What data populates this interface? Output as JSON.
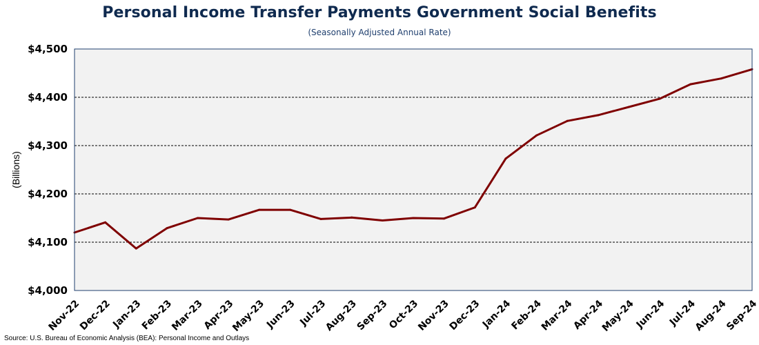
{
  "chart_data": {
    "type": "line",
    "title": "Personal Income Transfer Payments Government Social Benefits",
    "subtitle": "(Seasonally Adjusted Annual Rate)",
    "ylabel": "(Billions)",
    "xlabel": "",
    "source": "Source: U.S. Bureau of Economic Analysis (BEA): Personal Income and Outlays",
    "ylim": [
      4000,
      4500
    ],
    "yticks": [
      4000,
      4100,
      4200,
      4300,
      4400,
      4500
    ],
    "ytick_labels": [
      "$4,000",
      "$4,100",
      "$4,200",
      "$4,300",
      "$4,400",
      "$4,500"
    ],
    "grid": "horizontal dashed",
    "line_color": "#7f0000",
    "plot_background": "#f2f2f2",
    "categories": [
      "Nov-22",
      "Dec-22",
      "Jan-23",
      "Feb-23",
      "Mar-23",
      "Apr-23",
      "May-23",
      "Jun-23",
      "Jul-23",
      "Aug-23",
      "Sep-23",
      "Oct-23",
      "Nov-23",
      "Dec-23",
      "Jan-24",
      "Feb-24",
      "Mar-24",
      "Apr-24",
      "May-24",
      "Jun-24",
      "Jul-24",
      "Aug-24",
      "Sep-24"
    ],
    "series": [
      {
        "values": [
          4120,
          4141,
          4087,
          4129,
          4150,
          4147,
          4167,
          4167,
          4148,
          4151,
          4145,
          4150,
          4149,
          4172,
          4273,
          4321,
          4351,
          4363,
          4380,
          4397,
          4427,
          4439,
          4458
        ]
      }
    ]
  }
}
